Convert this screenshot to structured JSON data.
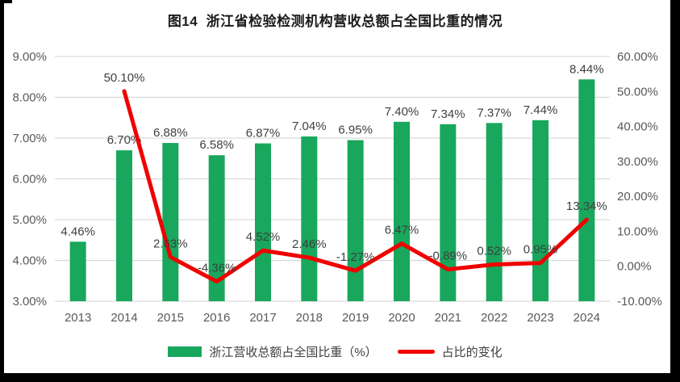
{
  "title": "图14  浙江省检验检测机构营收总额占全国比重的情况",
  "chart_data": {
    "type": "combo",
    "title": "图14  浙江省检验检测机构营收总额占全国比重的情况",
    "categories": [
      "2013",
      "2014",
      "2015",
      "2016",
      "2017",
      "2018",
      "2019",
      "2020",
      "2021",
      "2022",
      "2023",
      "2024"
    ],
    "series": [
      {
        "name": "浙江营收总额占全国比重（%）",
        "type": "bar",
        "axis": "left",
        "color": "#18A75C",
        "values": [
          4.46,
          6.7,
          6.88,
          6.58,
          6.87,
          7.04,
          6.95,
          7.4,
          7.34,
          7.37,
          7.44,
          8.44
        ]
      },
      {
        "name": "占比的变化",
        "type": "line",
        "axis": "right",
        "color": "#F00000",
        "values": [
          null,
          50.1,
          2.63,
          -4.36,
          4.52,
          2.46,
          -1.27,
          6.47,
          -0.89,
          0.52,
          0.95,
          13.34
        ]
      }
    ],
    "left_axis": {
      "min": 3,
      "max": 9,
      "step": 1,
      "tick_format": "0.00%"
    },
    "right_axis": {
      "min": -10,
      "max": 60,
      "step": 10,
      "tick_format": "0.00%"
    },
    "data_label_format": "0.00%",
    "grid": true,
    "legend_position": "bottom"
  },
  "colors": {
    "bar": "#18A75C",
    "line": "#F00000",
    "grid": "#D9D9D9",
    "tick_text": "#595959",
    "data_label": "#3F3F3F",
    "border": "#000000"
  }
}
